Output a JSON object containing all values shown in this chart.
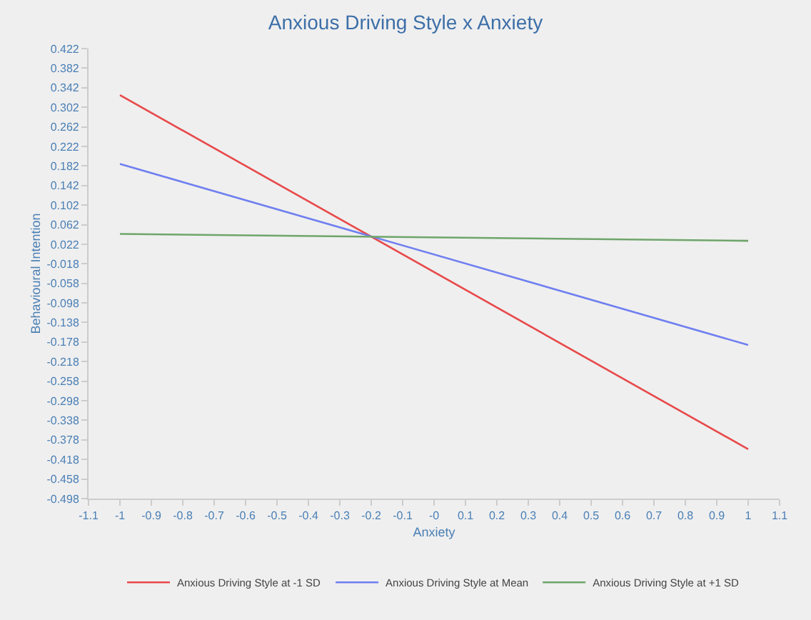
{
  "chart_data": {
    "type": "line",
    "title": "Anxious Driving Style x Anxiety",
    "xlabel": "Anxiety",
    "ylabel": "Behavioural Intention",
    "x": [
      -1,
      1
    ],
    "series": [
      {
        "name": "Anxious Driving Style at -1 SD",
        "color": "#e8494a",
        "values": [
          0.327,
          -0.397
        ]
      },
      {
        "name": "Anxious Driving Style at Mean",
        "color": "#6f7ff0",
        "values": [
          0.186,
          -0.184
        ]
      },
      {
        "name": "Anxious Driving Style at +1 SD",
        "color": "#6fa56a",
        "values": [
          0.043,
          0.029
        ]
      }
    ],
    "xlim": [
      -1.1,
      1.1
    ],
    "xticks": [
      -1.1,
      -1,
      -0.9,
      -0.8,
      -0.7,
      -0.6,
      -0.5,
      -0.4,
      -0.3,
      -0.2,
      -0.1,
      {
        "value": 0,
        "label": "-0"
      },
      0.1,
      0.2,
      0.3,
      0.4,
      0.5,
      0.6,
      0.7,
      0.8,
      0.9,
      1,
      1.1
    ],
    "ylim": [
      -0.498,
      0.422
    ],
    "yticks": [
      -0.498,
      -0.458,
      -0.418,
      -0.378,
      -0.338,
      -0.298,
      -0.258,
      -0.218,
      -0.178,
      -0.138,
      -0.098,
      -0.058,
      -0.018,
      0.022,
      0.062,
      0.102,
      0.142,
      0.182,
      0.222,
      0.262,
      0.302,
      0.342,
      0.382,
      0.422
    ],
    "grid": false,
    "legend": "bottom",
    "marker": "none",
    "line_style": "solid"
  }
}
